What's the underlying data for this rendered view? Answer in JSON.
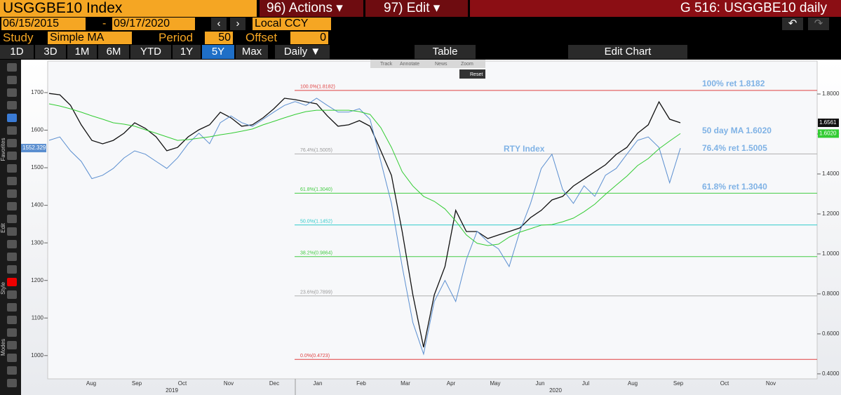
{
  "toolbar": {
    "security": "USGGBE10 Index",
    "actions": "96) Actions",
    "edit": "97) Edit",
    "page_title": "G 516: USGGBE10 daily",
    "start_date": "06/15/2015",
    "date_sep": "-",
    "end_date": "09/17/2020",
    "currency": "Local CCY",
    "study_label": "Study",
    "study": "Simple MA",
    "period_label": "Period",
    "period": "50",
    "offset_label": "Offset",
    "offset": "0",
    "ranges": [
      "1D",
      "3D",
      "1M",
      "6M",
      "YTD",
      "1Y",
      "5Y",
      "Max"
    ],
    "active_range": 6,
    "frequency": "Daily",
    "table": "Table",
    "edit_chart": "Edit Chart"
  },
  "popup": {
    "items": [
      "Track",
      "Annotate",
      "News",
      "Zoom"
    ],
    "reset": "Reset"
  },
  "sidebar": {
    "sections": [
      "Favorites",
      "Edit",
      "Style",
      "Modes"
    ]
  },
  "chart_data": {
    "type": "line",
    "months": [
      "Aug",
      "Sep",
      "Oct",
      "Nov",
      "Dec",
      "Jan",
      "Feb",
      "Mar",
      "Apr",
      "May",
      "Jun",
      "Jul",
      "Aug",
      "Sep",
      "Oct",
      "Nov"
    ],
    "years": [
      "2019",
      "2020"
    ],
    "ylim": [
      938,
      1784
    ],
    "yticks": [
      1000,
      1100,
      1200,
      1300,
      1400,
      1500,
      1600,
      1700
    ],
    "y2lim": [
      0.375,
      1.965
    ],
    "y2ticks": [
      {
        "value": 0.4,
        "label": "0.4000"
      },
      {
        "value": 0.6,
        "label": "0.6000"
      },
      {
        "value": 0.8,
        "label": "0.8000"
      },
      {
        "value": 1.0,
        "label": "1.0000"
      },
      {
        "value": 1.2,
        "label": "1.2000"
      },
      {
        "value": 1.4,
        "label": "1.4000"
      },
      {
        "value": 1.6,
        "label": "1.6000"
      },
      {
        "value": 1.8,
        "label": "1.8000"
      }
    ],
    "series": [
      {
        "color": "#111111",
        "axis": "y2",
        "last_label": "1.6561",
        "values": [
          1.803,
          1.796,
          1.744,
          1.646,
          1.568,
          1.551,
          1.568,
          1.604,
          1.656,
          1.628,
          1.586,
          1.516,
          1.533,
          1.586,
          1.621,
          1.646,
          1.709,
          1.681,
          1.639,
          1.646,
          1.681,
          1.726,
          1.779,
          1.772,
          1.761,
          1.751,
          1.691,
          1.639,
          1.646,
          1.667,
          1.639,
          1.516,
          1.393,
          1.112,
          0.796,
          0.533,
          0.796,
          0.937,
          1.218,
          1.112,
          1.112,
          1.077,
          1.095,
          1.112,
          1.13,
          1.182,
          1.218,
          1.27,
          1.288,
          1.34,
          1.375,
          1.411,
          1.446,
          1.498,
          1.533,
          1.604,
          1.646,
          1.761,
          1.674,
          1.6561
        ]
      },
      {
        "name": "RTY Index",
        "color": "#5b8fd0",
        "axis": "y",
        "last_label": "1552.329",
        "values": [
          1573,
          1582,
          1545,
          1517,
          1471,
          1480,
          1498,
          1526,
          1545,
          1536,
          1517,
          1498,
          1526,
          1564,
          1592,
          1564,
          1620,
          1638,
          1620,
          1610,
          1629,
          1648,
          1666,
          1676,
          1666,
          1685,
          1666,
          1648,
          1648,
          1657,
          1629,
          1517,
          1405,
          1237,
          1088,
          1004,
          1144,
          1200,
          1144,
          1256,
          1331,
          1303,
          1284,
          1237,
          1331,
          1405,
          1498,
          1536,
          1442,
          1405,
          1452,
          1424,
          1480,
          1498,
          1536,
          1573,
          1582,
          1554,
          1460,
          1552.329
        ]
      },
      {
        "color": "#33cc33",
        "axis": "y2",
        "last_label": "1.6020",
        "note": "50 day MA 1.6020",
        "values": [
          1.751,
          1.74,
          1.726,
          1.709,
          1.691,
          1.674,
          1.656,
          1.649,
          1.639,
          1.621,
          1.604,
          1.586,
          1.568,
          1.572,
          1.579,
          1.586,
          1.596,
          1.604,
          1.614,
          1.625,
          1.646,
          1.663,
          1.681,
          1.698,
          1.712,
          1.719,
          1.719,
          1.719,
          1.719,
          1.712,
          1.698,
          1.632,
          1.533,
          1.411,
          1.34,
          1.288,
          1.263,
          1.225,
          1.165,
          1.095,
          1.053,
          1.042,
          1.049,
          1.084,
          1.109,
          1.126,
          1.144,
          1.147,
          1.161,
          1.179,
          1.211,
          1.249,
          1.298,
          1.344,
          1.389,
          1.442,
          1.477,
          1.526,
          1.565,
          1.602
        ]
      }
    ],
    "retracements": [
      {
        "value": 1.8182,
        "label": "100.0%(1.8182)",
        "color": "#e04040",
        "note": "100% ret 1.8182"
      },
      {
        "value": 1.5005,
        "label": "76.4%(1.5005)",
        "color": "#b0b0b0",
        "note": "76.4% ret 1.5005"
      },
      {
        "value": 1.304,
        "label": "61.8%(1.3040)",
        "color": "#44cc44",
        "note": "61.8% ret 1.3040"
      },
      {
        "value": 1.1452,
        "label": "50.0%(1.1452)",
        "color": "#33cccc"
      },
      {
        "value": 0.9864,
        "label": "38.2%(0.9864)",
        "color": "#44cc44"
      },
      {
        "value": 0.7899,
        "label": "23.6%(0.7899)",
        "color": "#b0b0b0"
      },
      {
        "value": 0.4723,
        "label": "0.0%(0.4723)",
        "color": "#e04040"
      }
    ]
  }
}
